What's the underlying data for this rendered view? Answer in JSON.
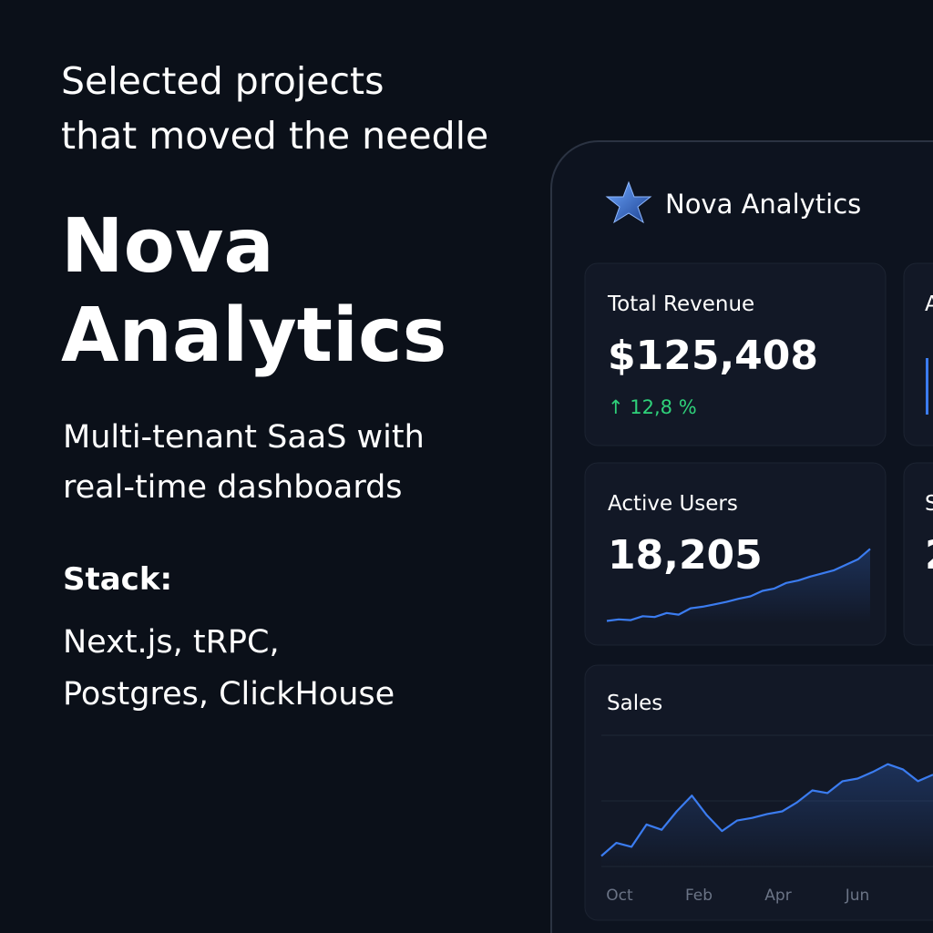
{
  "intro": {
    "heading": [
      "Selected projects",
      "that moved the needle"
    ],
    "title": [
      "Nova",
      "Analytics"
    ],
    "subtitle": [
      "Multi-tenant SaaS with",
      "real-time dashboards"
    ],
    "stack_label": "Stack:",
    "stack": [
      "Next.js, tRPC,",
      "Postgres, ClickHouse"
    ]
  },
  "dashboard": {
    "brand": "Nova Analytics",
    "cards": [
      {
        "title": "Total Revenue",
        "value": "$125,408",
        "change": "↑ 12,8 %"
      },
      {
        "title": "A"
      },
      {
        "title": "Active Users",
        "value": "18,205",
        "sparkline": {
          "ylim": [
            0,
            100
          ],
          "values": [
            4,
            6,
            5,
            10,
            9,
            14,
            12,
            20,
            22,
            25,
            28,
            32,
            35,
            42,
            45,
            52,
            55,
            60,
            64,
            68,
            75,
            82,
            95
          ]
        }
      },
      {
        "title": "S",
        "value": "2"
      }
    ],
    "sales": {
      "title": "Sales",
      "categories": [
        "Oct",
        "Feb",
        "Apr",
        "Jun"
      ],
      "ylim": [
        0,
        100
      ],
      "values": [
        8,
        18,
        15,
        32,
        28,
        42,
        54,
        39,
        27,
        35,
        37,
        40,
        42,
        49,
        58,
        56,
        65,
        67,
        72,
        78,
        74,
        65,
        70
      ],
      "color": "#3b7cf0"
    }
  }
}
